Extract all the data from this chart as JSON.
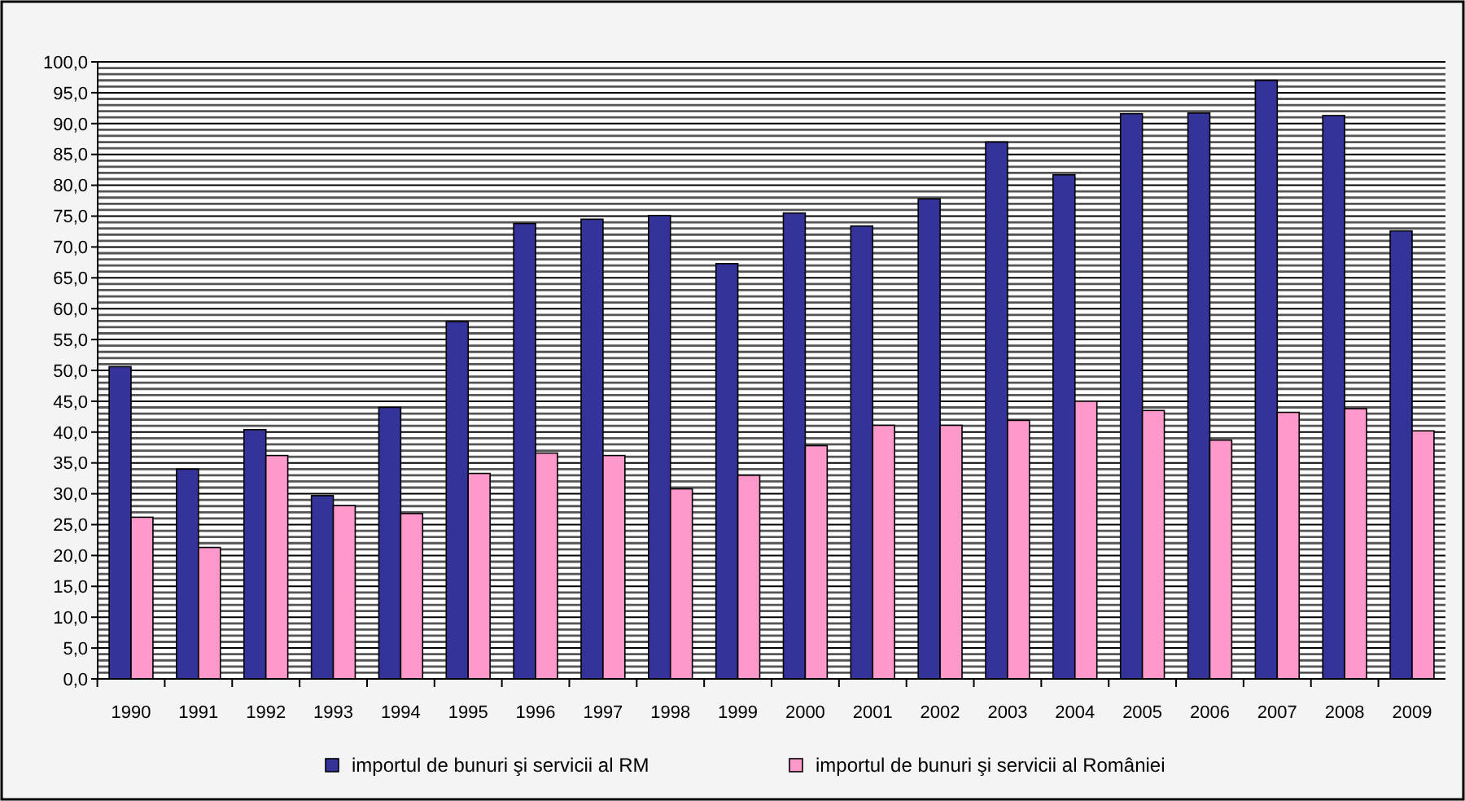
{
  "chart_data": {
    "type": "bar",
    "categories": [
      "1990",
      "1991",
      "1992",
      "1993",
      "1994",
      "1995",
      "1996",
      "1997",
      "1998",
      "1999",
      "2000",
      "2001",
      "2002",
      "2003",
      "2004",
      "2005",
      "2006",
      "2007",
      "2008",
      "2009"
    ],
    "series": [
      {
        "name": "importul de bunuri şi servicii al RM",
        "color": "#333399",
        "values": [
          50.6,
          34,
          40.4,
          29.7,
          44,
          57.9,
          73.8,
          74.5,
          75.1,
          67.3,
          75.5,
          73.4,
          77.8,
          87,
          81.7,
          91.6,
          91.7,
          97,
          91.3,
          72.6
        ]
      },
      {
        "name": "importul de bunuri şi servicii al României",
        "color": "#ff99cc",
        "values": [
          26.2,
          21.3,
          36.2,
          28.1,
          26.8,
          33.3,
          36.6,
          36.2,
          30.8,
          33,
          37.8,
          41.1,
          41.1,
          41.9,
          45,
          43.5,
          38.7,
          43.2,
          43.8,
          40.2
        ]
      }
    ],
    "ylim": [
      0,
      100
    ],
    "yticks": [
      {
        "value": 0,
        "label": "0,0"
      },
      {
        "value": 5,
        "label": "5,0"
      },
      {
        "value": 10,
        "label": "10,0"
      },
      {
        "value": 15,
        "label": "15,0"
      },
      {
        "value": 20,
        "label": "20,0"
      },
      {
        "value": 25,
        "label": "25,0"
      },
      {
        "value": 30,
        "label": "30,0"
      },
      {
        "value": 35,
        "label": "35,0"
      },
      {
        "value": 40,
        "label": "40,0"
      },
      {
        "value": 45,
        "label": "45,0"
      },
      {
        "value": 50,
        "label": "50,0"
      },
      {
        "value": 55,
        "label": "55,0"
      },
      {
        "value": 60,
        "label": "60,0"
      },
      {
        "value": 65,
        "label": "65,0"
      },
      {
        "value": 70,
        "label": "70,0"
      },
      {
        "value": 75,
        "label": "75,0"
      },
      {
        "value": 80,
        "label": "80,0"
      },
      {
        "value": 85,
        "label": "85,0"
      },
      {
        "value": 90,
        "label": "90,0"
      },
      {
        "value": 95,
        "label": "95,0"
      },
      {
        "value": 100,
        "label": "100,0"
      }
    ],
    "grid": "y",
    "legend": "bottom"
  }
}
